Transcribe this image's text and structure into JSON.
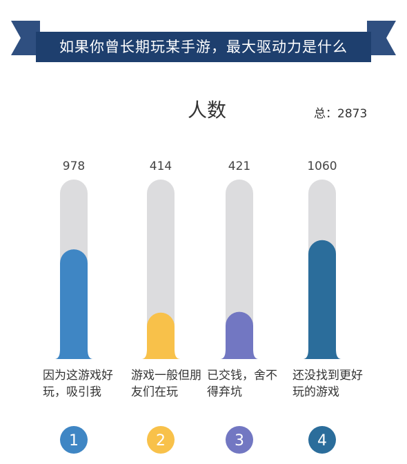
{
  "header": {
    "title": "如果你曾长期玩某手游，最大驱动力是什么"
  },
  "chart_data": {
    "type": "bar",
    "subtitle": "人数",
    "total_label": "总：2873",
    "categories": [
      "因为这游戏好玩，吸引我",
      "游戏一般但朋友们在玩",
      "已交钱，舍不得弃坑",
      "还没找到更好玩的游戏"
    ],
    "values": [
      978,
      414,
      421,
      1060
    ],
    "value_labels": [
      "978",
      "414",
      "421",
      "1060"
    ],
    "numbers": [
      "1",
      "2",
      "3",
      "4"
    ],
    "ylim": [
      0,
      1600
    ],
    "colors": [
      "#3f86c4",
      "#f8c14a",
      "#7277c2",
      "#2b6d9b"
    ],
    "track_color": "#dcdcde",
    "grid": false
  },
  "colors": {
    "banner": "#1e3f6e",
    "text": "#333333",
    "value_text": "#444444"
  }
}
